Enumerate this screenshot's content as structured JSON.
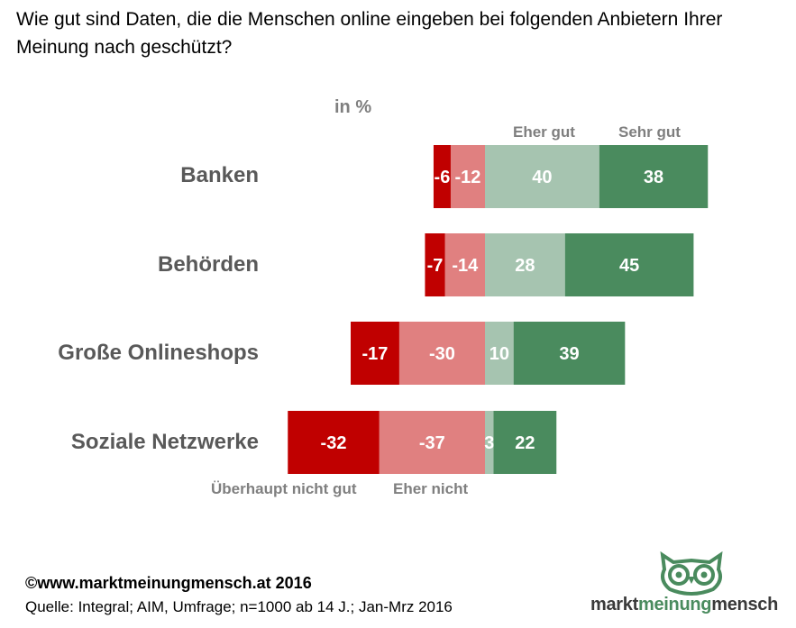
{
  "title": "Wie gut sind Daten, die die Menschen online eingeben bei folgenden Anbietern Ihrer Meinung nach geschützt?",
  "unit_label": "in %",
  "legend": {
    "eher_gut": "Eher gut",
    "sehr_gut": "Sehr gut",
    "ueberhaupt_nicht_gut": "Überhaupt nicht gut",
    "eher_nicht": "Eher nicht"
  },
  "colors": {
    "ueberhaupt_nicht_gut": "#c00000",
    "eher_nicht": "#e08080",
    "eher_gut": "#a6c4b0",
    "sehr_gut": "#4a8b5e"
  },
  "chart_data": {
    "type": "bar",
    "orientation": "horizontal",
    "stacked": "diverging",
    "categories": [
      "Banken",
      "Behörden",
      "Große Onlineshops",
      "Soziale Netzwerke"
    ],
    "series": [
      {
        "name": "Überhaupt nicht gut",
        "values": [
          -6,
          -7,
          -17,
          -32
        ]
      },
      {
        "name": "Eher nicht",
        "values": [
          -12,
          -14,
          -30,
          -37
        ]
      },
      {
        "name": "Eher gut",
        "values": [
          40,
          28,
          10,
          3
        ]
      },
      {
        "name": "Sehr gut",
        "values": [
          38,
          45,
          39,
          22
        ]
      }
    ]
  },
  "footer": {
    "copyright": "©www.marktmeinungmensch.at 2016",
    "source": "Quelle:  Integral; AIM, Umfrage; n=1000 ab 14 J.; Jan-Mrz 2016"
  },
  "logo": {
    "part1": "markt",
    "part2": "meinung",
    "part3": "mensch",
    "icon": "owl-icon"
  }
}
